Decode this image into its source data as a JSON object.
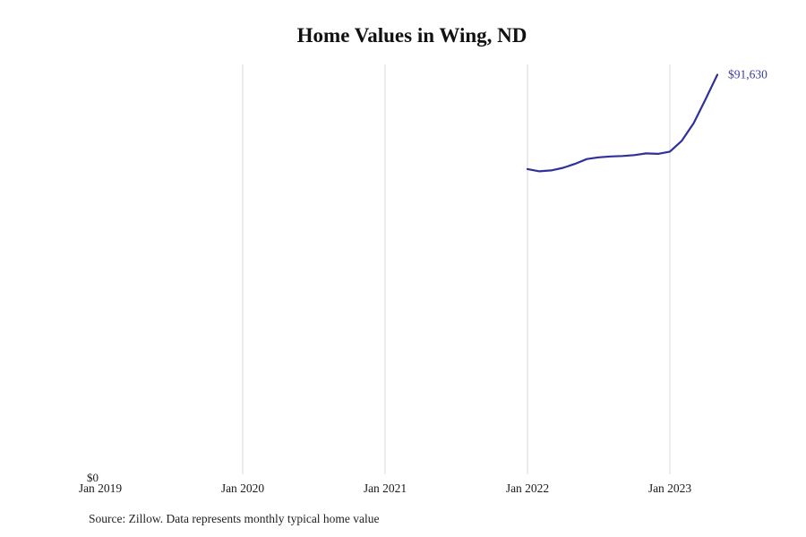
{
  "chart_data": {
    "type": "line",
    "title": "Home Values in Wing, ND",
    "source": "Source: Zillow. Data represents monthly typical home value",
    "xlabel": "",
    "ylabel": "",
    "ylim": [
      0,
      94000
    ],
    "grid": "vertical-only",
    "y_zero_label": "$0",
    "x_ticks": [
      {
        "label": "Jan 2019",
        "month": "2019-01",
        "gridline": false
      },
      {
        "label": "Jan 2020",
        "month": "2020-01",
        "gridline": true
      },
      {
        "label": "Jan 2021",
        "month": "2021-01",
        "gridline": true
      },
      {
        "label": "Jan 2022",
        "month": "2022-01",
        "gridline": true
      },
      {
        "label": "Jan 2023",
        "month": "2023-01",
        "gridline": true
      }
    ],
    "series": [
      {
        "name": "Monthly typical home value",
        "color": "#30309c",
        "end_label": "$91,630",
        "points": [
          {
            "month": "2022-01",
            "value": 70000
          },
          {
            "month": "2022-02",
            "value": 69500
          },
          {
            "month": "2022-03",
            "value": 69700
          },
          {
            "month": "2022-04",
            "value": 70300
          },
          {
            "month": "2022-05",
            "value": 71200
          },
          {
            "month": "2022-06",
            "value": 72300
          },
          {
            "month": "2022-07",
            "value": 72700
          },
          {
            "month": "2022-08",
            "value": 72900
          },
          {
            "month": "2022-09",
            "value": 73000
          },
          {
            "month": "2022-10",
            "value": 73200
          },
          {
            "month": "2022-11",
            "value": 73600
          },
          {
            "month": "2022-12",
            "value": 73500
          },
          {
            "month": "2023-01",
            "value": 74000
          },
          {
            "month": "2023-02",
            "value": 76500
          },
          {
            "month": "2023-03",
            "value": 80500
          },
          {
            "month": "2023-04",
            "value": 86000
          },
          {
            "month": "2023-05",
            "value": 91630
          }
        ]
      }
    ],
    "colors": {
      "line": "#30309c",
      "grid": "#d8d8d8",
      "tick_text": "#1a1a1a",
      "end_label_text": "#3c3c9e"
    }
  }
}
